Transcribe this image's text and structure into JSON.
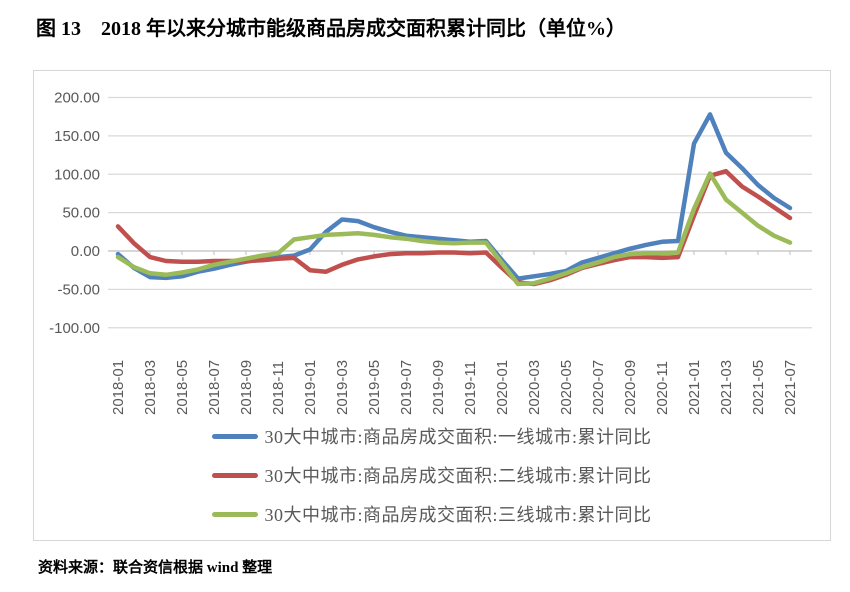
{
  "title": {
    "prefix": "图 13",
    "text": "2018 年以来分城市能级商品房成交面积累计同比（单位%）"
  },
  "source_note": "资料来源：联合资信根据 wind 整理",
  "colors": {
    "tier1_line": "#4F81BD",
    "tier2_line": "#C0504D",
    "tier3_line": "#9BBB59",
    "grid": "#D9D9D9",
    "zero_axis": "#BFBFBF",
    "axis_text": "#595959"
  },
  "chart_data": {
    "type": "line",
    "title": "2018 年以来分城市能级商品房成交面积累计同比（单位%）",
    "xlabel": "",
    "ylabel": "",
    "ylim": [
      -100,
      200
    ],
    "grid": "horizontal",
    "legend_position": "bottom",
    "y_tick_values": [
      200,
      150,
      100,
      50,
      0,
      -50,
      -100
    ],
    "y_tick_labels": [
      "200.00",
      "150.00",
      "100.00",
      "50.00",
      "0.00",
      "-50.00",
      "-100.00"
    ],
    "x_tick_step": 2,
    "months": [
      "2018-01",
      "2018-02",
      "2018-03",
      "2018-04",
      "2018-05",
      "2018-06",
      "2018-07",
      "2018-08",
      "2018-09",
      "2018-10",
      "2018-11",
      "2018-12",
      "2019-01",
      "2019-02",
      "2019-03",
      "2019-04",
      "2019-05",
      "2019-06",
      "2019-07",
      "2019-08",
      "2019-09",
      "2019-10",
      "2019-11",
      "2019-12",
      "2020-01",
      "2020-02",
      "2020-03",
      "2020-04",
      "2020-05",
      "2020-06",
      "2020-07",
      "2020-08",
      "2020-09",
      "2020-10",
      "2020-11",
      "2020-12",
      "2021-01",
      "2021-02",
      "2021-03",
      "2021-04",
      "2021-05",
      "2021-06",
      "2021-07"
    ],
    "series": [
      {
        "name": "30大中城市:商品房成交面积:一线城市:累计同比",
        "color": "#4F81BD",
        "values": [
          -4,
          -22,
          -34,
          -35,
          -33,
          -27,
          -23,
          -18,
          -14,
          -11,
          -8,
          -6,
          2,
          25,
          41,
          39,
          31,
          25,
          20,
          18,
          16,
          14,
          12,
          13,
          -12,
          -36,
          -33,
          -30,
          -26,
          -15,
          -9,
          -3,
          3,
          8,
          12,
          13,
          140,
          178,
          128,
          108,
          86,
          69,
          56
        ]
      },
      {
        "name": "30大中城市:商品房成交面积:二线城市:累计同比",
        "color": "#C0504D",
        "values": [
          32,
          10,
          -8,
          -13,
          -14,
          -14,
          -13,
          -13,
          -13,
          -12,
          -10,
          -9,
          -25,
          -27,
          -18,
          -11,
          -7,
          -4,
          -3,
          -3,
          -2,
          -2,
          -3,
          -2,
          -22,
          -41,
          -43,
          -38,
          -31,
          -22,
          -17,
          -12,
          -8,
          -8,
          -9,
          -8,
          46,
          98,
          104,
          84,
          71,
          57,
          43
        ]
      },
      {
        "name": "30大中城市:商品房成交面积:三线城市:累计同比",
        "color": "#9BBB59",
        "values": [
          -8,
          -21,
          -29,
          -31,
          -28,
          -24,
          -18,
          -14,
          -10,
          -6,
          -3,
          15,
          18,
          21,
          22,
          23,
          21,
          18,
          16,
          13,
          11,
          10,
          11,
          11,
          -16,
          -43,
          -42,
          -36,
          -29,
          -21,
          -15,
          -8,
          -4,
          -3,
          -3,
          -2,
          55,
          101,
          67,
          50,
          33,
          20,
          11
        ]
      }
    ]
  }
}
